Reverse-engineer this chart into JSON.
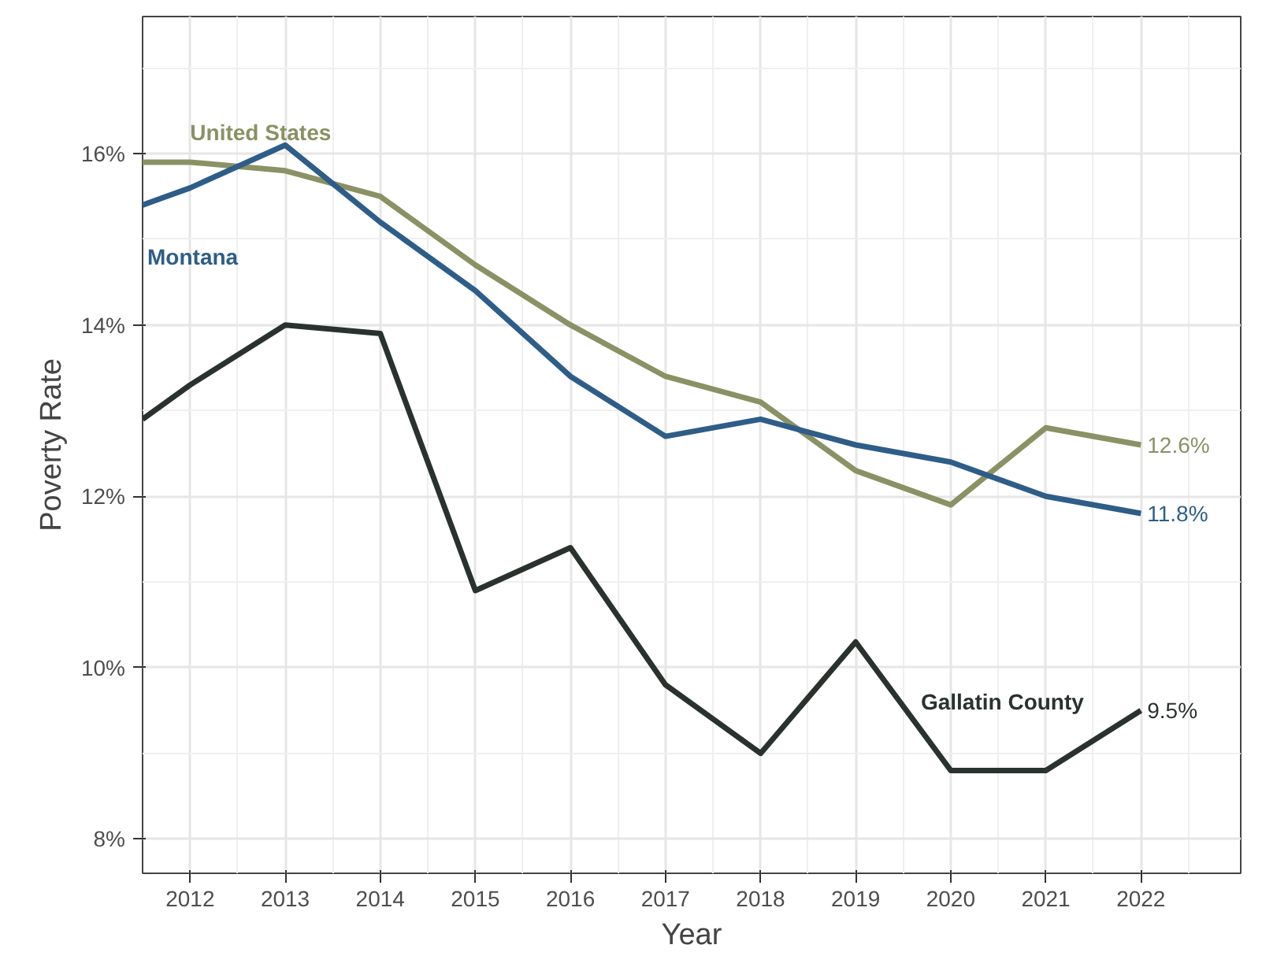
{
  "chart_data": {
    "type": "line",
    "xlabel": "Year",
    "ylabel": "Poverty Rate",
    "x": [
      2011.5,
      2012,
      2013,
      2014,
      2015,
      2016,
      2017,
      2018,
      2019,
      2020,
      2021,
      2022
    ],
    "series": [
      {
        "name": "United States",
        "color": "#8a9164",
        "values": [
          15.9,
          15.9,
          15.8,
          15.5,
          14.7,
          14.0,
          13.4,
          13.1,
          12.3,
          11.9,
          12.8,
          12.6
        ],
        "value_labels": [
          null,
          null,
          null,
          null,
          null,
          null,
          null,
          null,
          null,
          null,
          null,
          "12.6%"
        ]
      },
      {
        "name": "Montana",
        "color": "#2e5d88",
        "values": [
          15.4,
          15.6,
          16.1,
          15.2,
          14.4,
          13.4,
          12.7,
          12.9,
          12.6,
          12.4,
          12.0,
          11.8
        ],
        "value_labels": [
          null,
          null,
          null,
          null,
          null,
          null,
          null,
          null,
          null,
          null,
          null,
          "11.8%"
        ]
      },
      {
        "name": "Gallatin County",
        "color": "#2a322e",
        "values": [
          12.9,
          13.3,
          14.0,
          13.9,
          10.9,
          11.4,
          9.8,
          9.0,
          10.3,
          8.8,
          8.8,
          9.5
        ],
        "value_labels": [
          null,
          null,
          null,
          null,
          null,
          null,
          null,
          null,
          null,
          null,
          null,
          "9.5%"
        ]
      }
    ],
    "xlim": [
      2011.5,
      2023.05
    ],
    "ylim": [
      7.6,
      17.6
    ],
    "xticks": [
      2012,
      2013,
      2014,
      2015,
      2016,
      2017,
      2018,
      2019,
      2020,
      2021,
      2022
    ],
    "yticks": [
      {
        "value": 8,
        "label": "8%"
      },
      {
        "value": 10,
        "label": "10%"
      },
      {
        "value": 12,
        "label": "12%"
      },
      {
        "value": 14,
        "label": "14%"
      },
      {
        "value": 16,
        "label": "16%"
      }
    ],
    "grid": true,
    "line_style": "solid",
    "marker": "none"
  }
}
